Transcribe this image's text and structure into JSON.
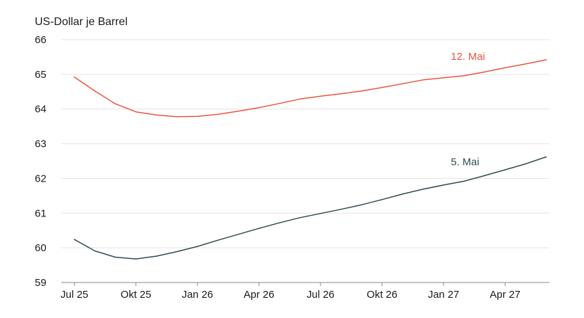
{
  "chart_data": {
    "type": "line",
    "title": "",
    "xlabel": "",
    "ylabel": "US-Dollar je Barrel",
    "ylim": [
      59,
      66
    ],
    "yticks": [
      59,
      60,
      61,
      62,
      63,
      64,
      65,
      66
    ],
    "xticks": [
      "Jul 25",
      "Okt 25",
      "Jan 26",
      "Apr 26",
      "Jul 26",
      "Okt 26",
      "Jan 27",
      "Apr 27"
    ],
    "x": [
      "Jul 25",
      "Aug 25",
      "Sep 25",
      "Okt 25",
      "Nov 25",
      "Dez 25",
      "Jan 26",
      "Feb 26",
      "Mär 26",
      "Apr 26",
      "Mai 26",
      "Jun 26",
      "Jul 26",
      "Aug 26",
      "Sep 26",
      "Okt 26",
      "Nov 26",
      "Dez 26",
      "Jan 27",
      "Feb 27",
      "Mär 27",
      "Apr 27",
      "Mai 27",
      "Jun 27"
    ],
    "grid": true,
    "series": [
      {
        "name": "12. Mai",
        "color": "#e8553f",
        "values": [
          64.92,
          64.52,
          64.15,
          63.92,
          63.83,
          63.78,
          63.79,
          63.85,
          63.94,
          64.04,
          64.16,
          64.29,
          64.37,
          64.44,
          64.52,
          64.62,
          64.73,
          64.84,
          64.9,
          64.96,
          65.07,
          65.19,
          65.3,
          65.42
        ]
      },
      {
        "name": "5. Mai",
        "color": "#2f4b50",
        "values": [
          60.24,
          59.91,
          59.73,
          59.68,
          59.76,
          59.89,
          60.04,
          60.22,
          60.39,
          60.56,
          60.72,
          60.87,
          60.99,
          61.11,
          61.24,
          61.39,
          61.55,
          61.69,
          61.81,
          61.92,
          62.08,
          62.25,
          62.42,
          62.62
        ]
      }
    ],
    "legend": "inline labels at the right end of each line",
    "colors": {
      "grid": "#e3e3e3",
      "baseline": "#8a8a8a",
      "text": "#1a1a1a"
    }
  }
}
